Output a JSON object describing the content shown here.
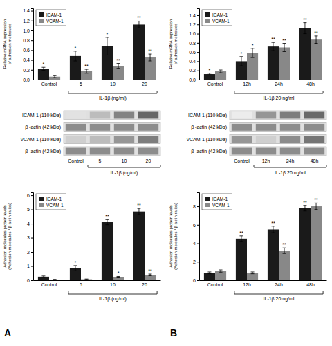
{
  "chart_data": [
    {
      "type": "bar",
      "ylabel": "Relative mRNA expression\nof adhesion molecules",
      "xlabel": "IL-1β (ng/ml)",
      "categories": [
        "Control",
        "5",
        "10",
        "20"
      ],
      "series": [
        {
          "name": "ICAM-1",
          "color": "#1a1a1a",
          "values": [
            0.22,
            0.48,
            0.68,
            1.12
          ],
          "errors": [
            0.03,
            0.1,
            0.18,
            0.07
          ],
          "annotations": [
            "*",
            "*",
            "*",
            "**"
          ]
        },
        {
          "name": "VCAM-1",
          "color": "#888888",
          "values": [
            0.06,
            0.17,
            0.28,
            0.45
          ],
          "errors": [
            0.02,
            0.04,
            0.05,
            0.07
          ],
          "annotations": [
            null,
            "**",
            "**",
            "**"
          ]
        }
      ],
      "ylim": [
        0,
        1.45
      ],
      "yticks": [
        {
          "value": 0,
          "label": "0.0"
        },
        0.2,
        0.4,
        0.6,
        0.8,
        {
          "value": 1.0,
          "label": "1.0"
        },
        1.2,
        1.4
      ],
      "legend": "upper left",
      "grid": false
    },
    {
      "type": "bar",
      "ylabel": "Relative mRNA expression\nof adhesion molecules",
      "xlabel": "IL-1β 20 ng/ml",
      "categories": [
        "Control",
        "12h",
        "24h",
        "48h"
      ],
      "series": [
        {
          "name": "ICAM-1",
          "color": "#1a1a1a",
          "values": [
            0.12,
            0.4,
            0.72,
            1.12
          ],
          "errors": [
            0.02,
            0.1,
            0.09,
            0.12
          ],
          "annotations": [
            "*",
            "*",
            "**",
            "**"
          ]
        },
        {
          "name": "VCAM-1",
          "color": "#888888",
          "values": [
            0.18,
            0.58,
            0.7,
            0.87
          ],
          "errors": [
            0.03,
            0.1,
            0.09,
            0.08
          ],
          "annotations": [
            null,
            "*",
            "**",
            "**"
          ]
        }
      ],
      "ylim": [
        0,
        1.55
      ],
      "yticks": [
        {
          "value": 0,
          "label": "0.0"
        },
        0.2,
        0.4,
        0.6,
        0.8,
        {
          "value": 1.0,
          "label": "1.0"
        },
        1.2,
        1.4
      ],
      "legend": "upper left",
      "grid": false
    },
    {
      "type": "heatmap",
      "rows": [
        "ICAM-1 (110 kDa)",
        "β -actin (42 kDa)",
        "VCAM-1 (110 kDa)",
        "β -actin (42 kDa)"
      ],
      "categories": [
        "Control",
        "5",
        "10",
        "20"
      ],
      "values": [
        [
          0.15,
          0.35,
          0.65,
          0.8
        ],
        [
          0.6,
          0.6,
          0.6,
          0.6
        ],
        [
          0.25,
          0.35,
          0.55,
          0.68
        ],
        [
          0.6,
          0.6,
          0.6,
          0.6
        ]
      ],
      "zlim": [
        0,
        1
      ],
      "xlabel": "IL-1β (ng/ml)"
    },
    {
      "type": "heatmap",
      "rows": [
        "ICAM-1 (110 kDa)",
        "β -actin (42 kDa)",
        "VCAM-1 (110 kDa)",
        "β -actin (42 kDa)"
      ],
      "categories": [
        "Control",
        "12h",
        "24h",
        "48h"
      ],
      "values": [
        [
          0.1,
          0.55,
          0.68,
          0.78
        ],
        [
          0.6,
          0.6,
          0.6,
          0.6
        ],
        [
          0.55,
          0.25,
          0.6,
          0.72
        ],
        [
          0.6,
          0.6,
          0.6,
          0.6
        ]
      ],
      "zlim": [
        0,
        1
      ],
      "xlabel": "IL-1β 20 ng/ml"
    },
    {
      "type": "bar",
      "ylabel": "Adhesion molecules protein levels\n(Adhesion molecules / β-actin ratios)",
      "xlabel": "IL-1β (ng/ml)",
      "categories": [
        "Control",
        "5",
        "10",
        "20"
      ],
      "series": [
        {
          "name": "ICAM-1",
          "color": "#1a1a1a",
          "values": [
            0.25,
            0.85,
            4.1,
            4.85
          ],
          "errors": [
            0.05,
            0.18,
            0.18,
            0.22
          ],
          "annotations": [
            null,
            "*",
            "**",
            "**"
          ]
        },
        {
          "name": "VCAM-1",
          "color": "#888888",
          "values": [
            0.05,
            0.07,
            0.22,
            0.38
          ],
          "errors": [
            0.01,
            0.02,
            0.05,
            0.06
          ],
          "annotations": [
            null,
            null,
            "*",
            "**"
          ]
        }
      ],
      "ylim": [
        0,
        6.2
      ],
      "yticks": [
        0,
        1,
        2,
        3,
        4,
        5,
        6
      ],
      "legend": "upper left",
      "grid": false,
      "annotations": [
        "A"
      ]
    },
    {
      "type": "bar",
      "ylabel": "Adhesion molecules protein levels\n(Adhesion molecules / β-actin ratios)",
      "xlabel": "IL-1β 20 ng/ml",
      "categories": [
        "Control",
        "12h",
        "24h",
        "48h"
      ],
      "series": [
        {
          "name": "ICAM-1",
          "color": "#1a1a1a",
          "values": [
            0.8,
            4.5,
            5.5,
            7.8
          ],
          "errors": [
            0.1,
            0.3,
            0.35,
            0.3
          ],
          "annotations": [
            null,
            "**",
            "**",
            "**"
          ]
        },
        {
          "name": "VCAM-1",
          "color": "#888888",
          "values": [
            1.0,
            0.8,
            3.2,
            8.0
          ],
          "errors": [
            0.12,
            0.1,
            0.3,
            0.35
          ],
          "annotations": [
            null,
            null,
            "**",
            "**"
          ]
        }
      ],
      "ylim": [
        0,
        9.5
      ],
      "yticks": [
        0,
        2,
        4,
        6,
        8
      ],
      "legend": "upper left",
      "grid": false,
      "annotations": [
        "B"
      ]
    }
  ]
}
